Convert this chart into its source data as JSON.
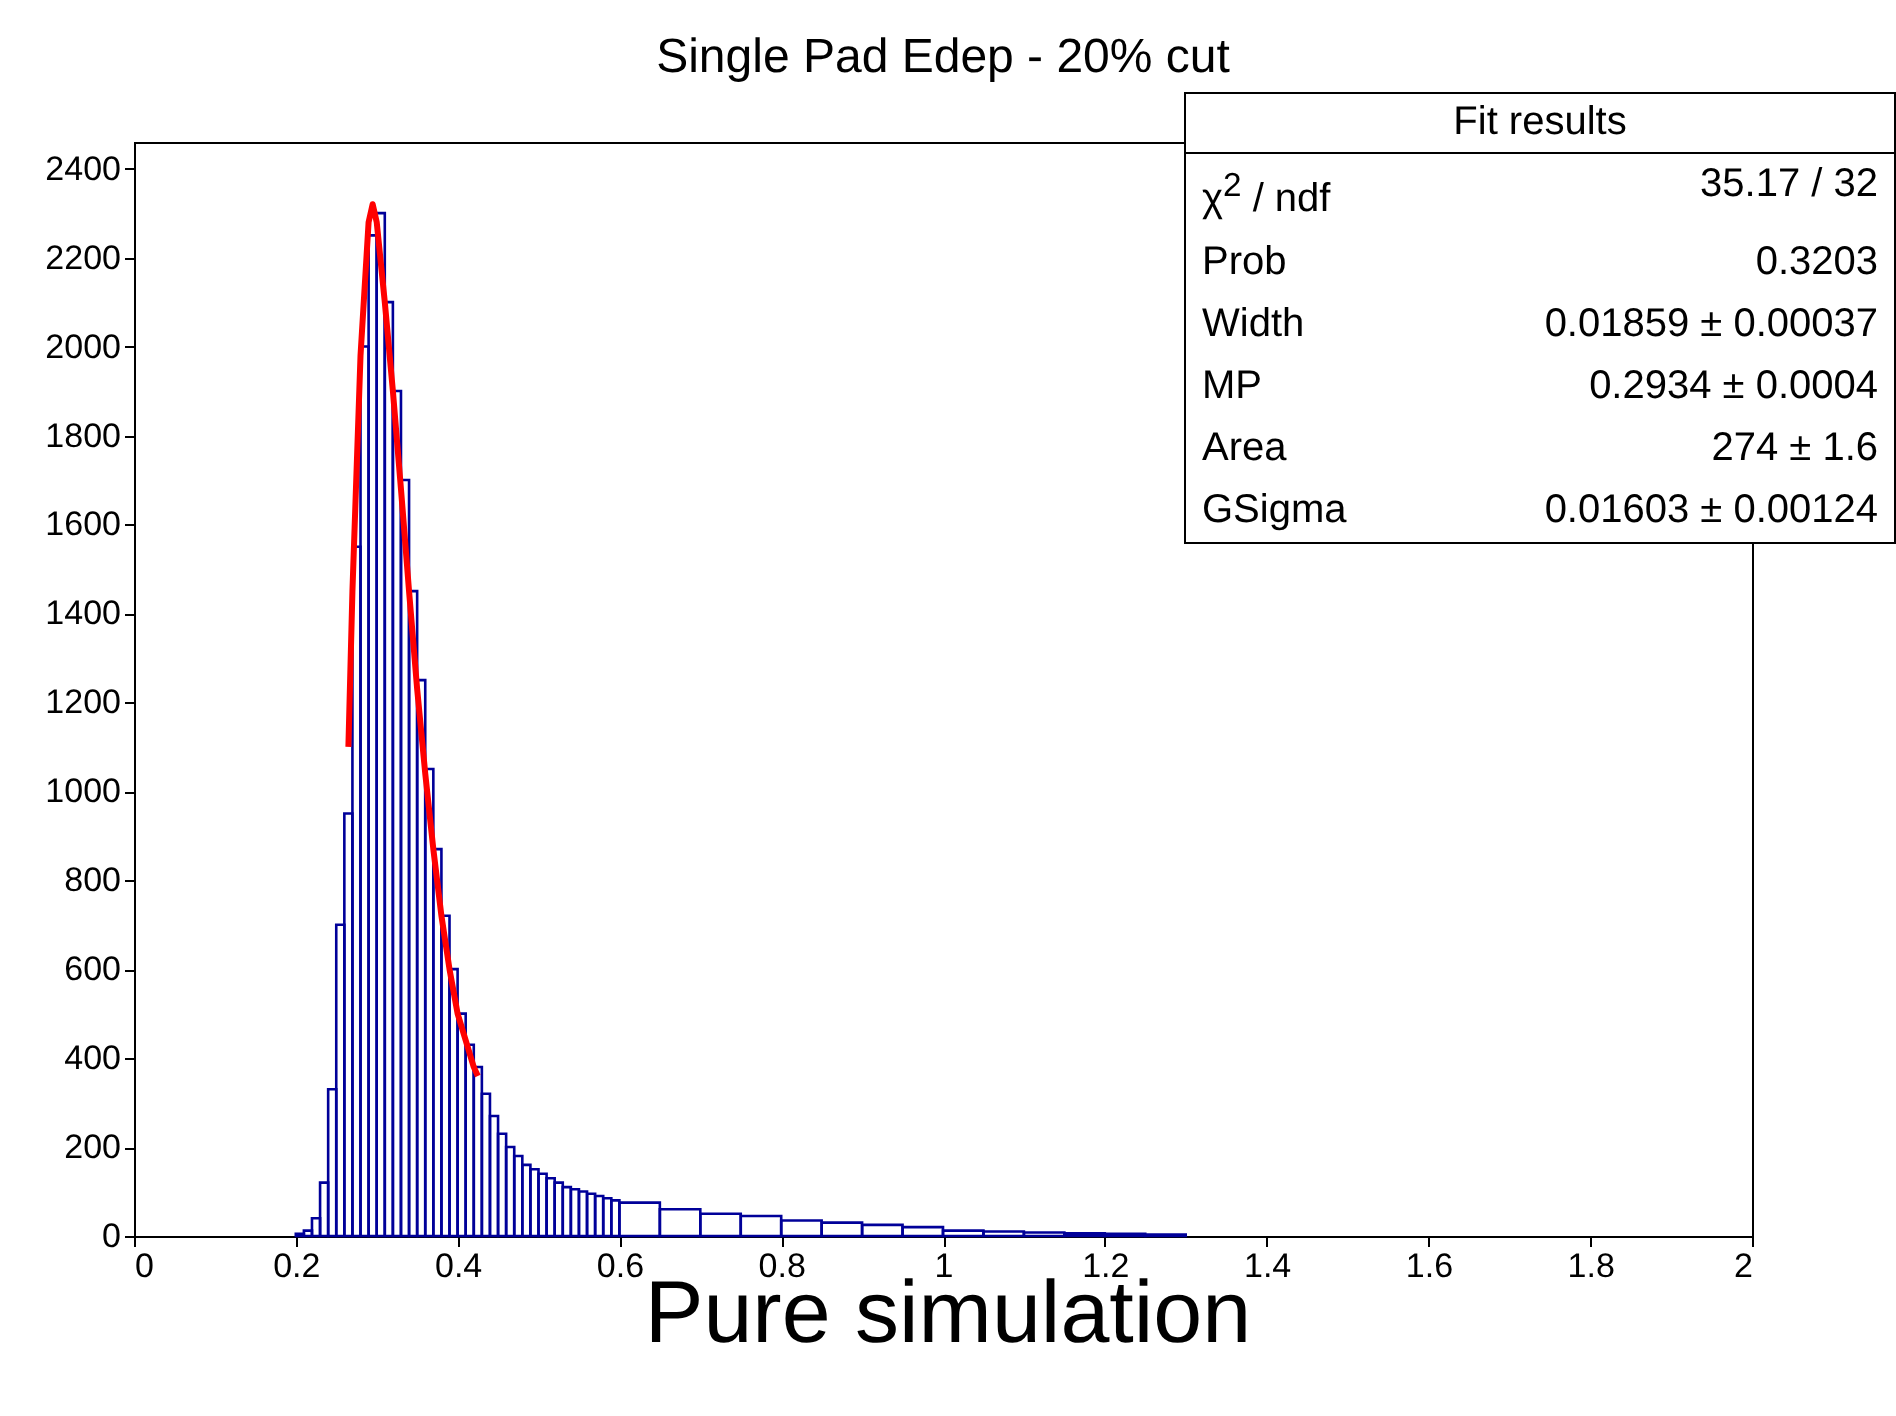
{
  "chart_data": {
    "type": "histogram",
    "title": "Single Pad Edep - 20% cut",
    "bins": [
      0.2,
      0.21,
      0.22,
      0.23,
      0.24,
      0.25,
      0.26,
      0.27,
      0.28,
      0.29,
      0.3,
      0.31,
      0.32,
      0.33,
      0.34,
      0.35,
      0.36,
      0.37,
      0.38,
      0.39,
      0.4,
      0.41,
      0.42,
      0.43,
      0.44,
      0.45,
      0.46,
      0.47,
      0.48,
      0.49,
      0.5,
      0.51,
      0.52,
      0.53,
      0.54,
      0.55,
      0.56,
      0.57,
      0.58,
      0.59,
      0.6,
      0.65,
      0.7,
      0.75,
      0.8,
      0.85,
      0.9,
      0.95,
      1.0,
      1.05,
      1.1,
      1.15,
      1.2,
      1.25,
      1.3
    ],
    "values": [
      5,
      12,
      40,
      120,
      330,
      700,
      950,
      1550,
      2000,
      2250,
      2300,
      2100,
      1900,
      1700,
      1450,
      1250,
      1050,
      870,
      720,
      600,
      500,
      430,
      380,
      320,
      270,
      230,
      200,
      180,
      160,
      150,
      140,
      130,
      120,
      110,
      105,
      100,
      95,
      90,
      85,
      80,
      75,
      60,
      50,
      45,
      35,
      30,
      25,
      20,
      12,
      10,
      8,
      6,
      5,
      3
    ],
    "color": "#000099",
    "series": [
      {
        "type": "line",
        "color": "#ff0000",
        "x": [
          0.265,
          0.27,
          0.28,
          0.29,
          0.295,
          0.3,
          0.31,
          0.32,
          0.33,
          0.34,
          0.35,
          0.36,
          0.37,
          0.38,
          0.39,
          0.4,
          0.41,
          0.42,
          0.425
        ],
        "values": [
          1100,
          1450,
          1980,
          2280,
          2320,
          2280,
          2100,
          1900,
          1680,
          1450,
          1230,
          1040,
          870,
          720,
          600,
          500,
          440,
          380,
          360
        ]
      }
    ],
    "xlim": [
      0,
      2
    ],
    "xticks": [
      0,
      0.2,
      0.4,
      0.6,
      0.8,
      1,
      1.2,
      1.4,
      1.6,
      1.8,
      2
    ],
    "ylim": [
      0,
      2460
    ],
    "yticks": [
      0,
      200,
      400,
      600,
      800,
      1000,
      1200,
      1400,
      1600,
      1800,
      2000,
      2200,
      2400
    ],
    "grid": false,
    "annotations": [
      "Fit results",
      "χ$^{2}$ / ndf",
      "35.17 / 32",
      "Prob",
      "0.3203",
      "Width",
      "0.01859 ± 0.00037",
      "MP",
      "0.2934 ± 0.0004",
      "Area",
      "274 ± 1.6",
      "GSigma",
      "0.01603 ± 0.00124",
      "Pure simulation"
    ]
  }
}
